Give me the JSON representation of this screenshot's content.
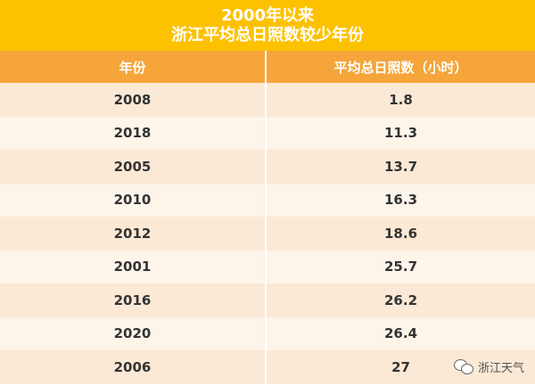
{
  "chart_data": {
    "type": "table",
    "title": "2000年以来",
    "subtitle": "浙江平均总日照数较少年份",
    "columns": [
      "年份",
      "平均总日照数（小时）"
    ],
    "rows": [
      {
        "year": "2008",
        "hours": "1.8"
      },
      {
        "year": "2018",
        "hours": "11.3"
      },
      {
        "year": "2005",
        "hours": "13.7"
      },
      {
        "year": "2010",
        "hours": "16.3"
      },
      {
        "year": "2012",
        "hours": "18.6"
      },
      {
        "year": "2001",
        "hours": "25.7"
      },
      {
        "year": "2016",
        "hours": "26.2"
      },
      {
        "year": "2020",
        "hours": "26.4"
      },
      {
        "year": "2006",
        "hours": "27"
      }
    ]
  },
  "watermark": {
    "text": "浙江天气",
    "icon": "wechat-icon"
  },
  "colors": {
    "title_bg": "#fcc200",
    "header_bg": "#f5a53a",
    "row_odd": "#fbe9d6",
    "row_even": "#fdf4ea"
  }
}
